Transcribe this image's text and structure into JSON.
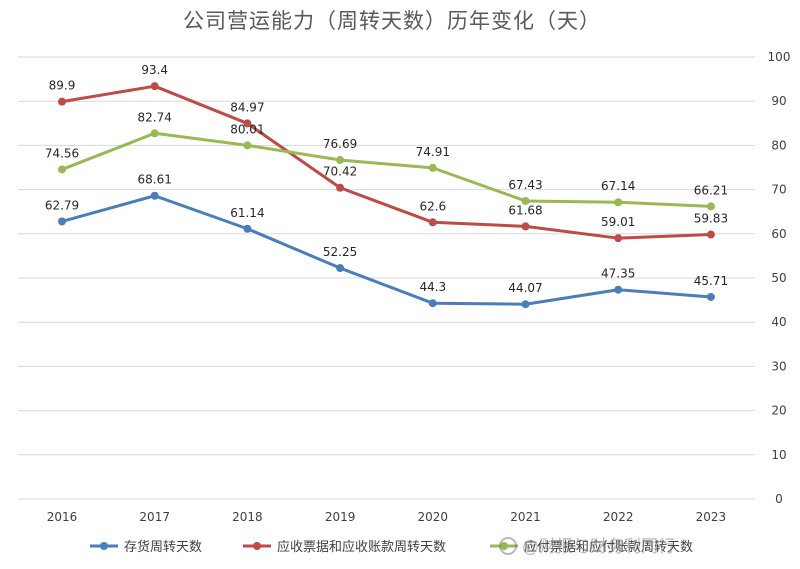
{
  "chart_data": {
    "type": "line",
    "title": "公司营运能力（周转天数）历年变化（天）",
    "categories": [
      "2016",
      "2017",
      "2018",
      "2019",
      "2020",
      "2021",
      "2022",
      "2023"
    ],
    "ylim": [
      0,
      100
    ],
    "yticks": [
      0,
      10,
      20,
      30,
      40,
      50,
      60,
      70,
      80,
      90,
      100
    ],
    "y_axis_side": "right",
    "grid": true,
    "legend_position": "bottom",
    "series": [
      {
        "name": "存货周转天数",
        "color": "#4a7ebb",
        "values": [
          62.79,
          68.61,
          61.14,
          52.25,
          44.3,
          44.07,
          47.35,
          45.71
        ],
        "labels": [
          "62.79",
          "68.61",
          "61.14",
          "52.25",
          "44.3",
          "44.07",
          "47.35",
          "45.71"
        ]
      },
      {
        "name": "应收票据和应收账款周转天数",
        "color": "#be4b48",
        "values": [
          89.9,
          93.4,
          84.97,
          70.42,
          62.6,
          61.68,
          59.01,
          59.83
        ],
        "labels": [
          "89.9",
          "93.4",
          "84.97",
          "70.42",
          "62.6",
          "61.68",
          "59.01",
          "59.83"
        ]
      },
      {
        "name": "应付票据和应付账款周转天数",
        "color": "#98b954",
        "values": [
          74.56,
          82.74,
          80.01,
          76.69,
          74.91,
          67.43,
          67.14,
          66.21
        ],
        "labels": [
          "74.56",
          "82.74",
          "80.01",
          "76.69",
          "74.91",
          "67.43",
          "67.14",
          "66.21"
        ]
      }
    ]
  },
  "watermark": {
    "text": "@财报与财务利同行",
    "icon": "snowball-logo-icon"
  }
}
